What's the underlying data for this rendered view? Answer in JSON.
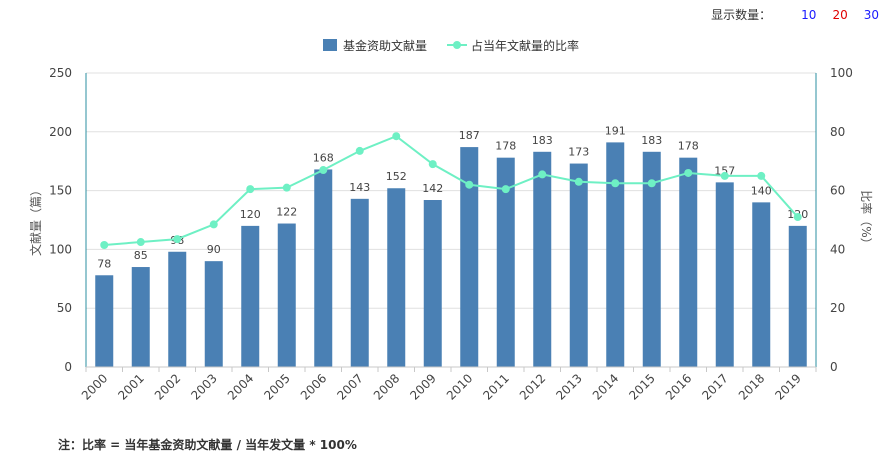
{
  "controls": {
    "label": "显示数量：",
    "options": [
      {
        "text": "10",
        "color": "#1a1aff"
      },
      {
        "text": "20",
        "color": "#e00000"
      },
      {
        "text": "30",
        "color": "#1a1aff"
      }
    ]
  },
  "note": "注：比率 = 当年基金资助文献量 / 当年发文量 * 100%",
  "colors": {
    "bar": "#4a80b4",
    "line": "#6ef0c4",
    "axis": "#2b8fa0",
    "grid": "#e0e0e0"
  },
  "chart_data": {
    "type": "bar",
    "categories": [
      "2000",
      "2001",
      "2002",
      "2003",
      "2004",
      "2005",
      "2006",
      "2007",
      "2008",
      "2009",
      "2010",
      "2011",
      "2012",
      "2013",
      "2014",
      "2015",
      "2016",
      "2017",
      "2018",
      "2019"
    ],
    "series": [
      {
        "name": "基金资助文献量",
        "type": "bar",
        "axis": "left",
        "values": [
          78,
          85,
          98,
          90,
          120,
          122,
          168,
          143,
          152,
          142,
          187,
          178,
          183,
          173,
          191,
          183,
          178,
          157,
          140,
          120
        ]
      },
      {
        "name": "占当年文献量的比率",
        "type": "line",
        "axis": "right",
        "values": [
          41.5,
          42.5,
          43.5,
          48.5,
          60.5,
          61,
          67,
          73.5,
          78.5,
          69,
          62,
          60.5,
          65.5,
          63,
          62.5,
          62.5,
          66,
          65,
          65,
          51
        ]
      }
    ],
    "ylabel": "文献量（篇）",
    "y2label": "比率（%）",
    "ylim": [
      0,
      250
    ],
    "yticks": [
      0,
      50,
      100,
      150,
      200,
      250
    ],
    "y2lim": [
      0,
      100
    ],
    "y2ticks": [
      0,
      20,
      40,
      60,
      80,
      100
    ],
    "legend": "top-center",
    "grid": true
  }
}
